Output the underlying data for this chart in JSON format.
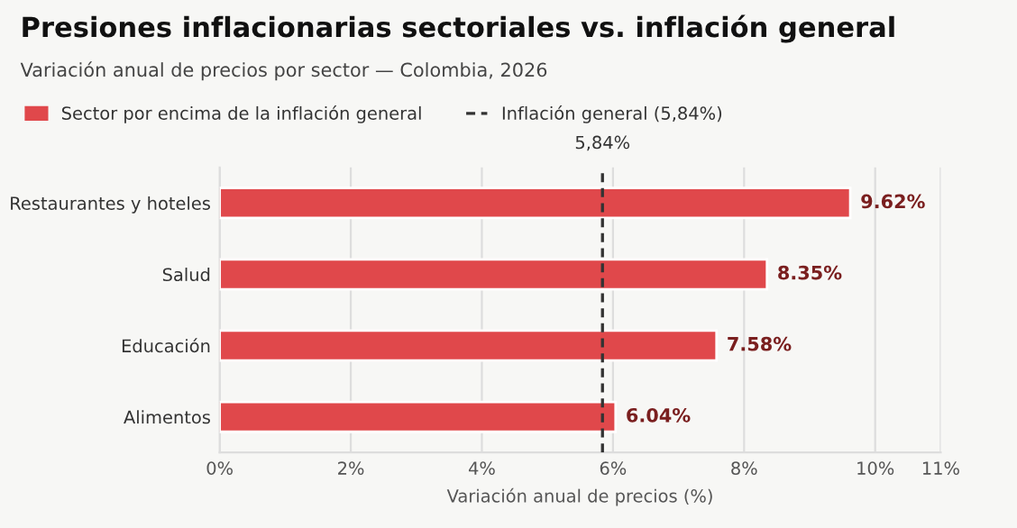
{
  "chart_data": {
    "type": "bar",
    "orientation": "horizontal",
    "title": "Presiones inflacionarias sectoriales vs. inflación general",
    "subtitle": "Variación anual de precios por sector — Colombia, 2026",
    "xlabel": "Variación anual de precios (%)",
    "categories": [
      "Restaurantes y hoteles",
      "Salud",
      "Educación",
      "Alimentos"
    ],
    "series": [
      {
        "name": "Sector por encima de la inflación general",
        "color": "#e0484b",
        "values": [
          9.62,
          8.35,
          7.58,
          6.04
        ],
        "value_labels": [
          "9.62%",
          "8.35%",
          "7.58%",
          "6.04%"
        ]
      }
    ],
    "xlim": [
      0,
      11
    ],
    "xticks": [
      {
        "value": 0,
        "label": "0%"
      },
      {
        "value": 2,
        "label": "2%"
      },
      {
        "value": 4,
        "label": "4%"
      },
      {
        "value": 6,
        "label": "6%"
      },
      {
        "value": 8,
        "label": "8%"
      },
      {
        "value": 10,
        "label": "10%"
      },
      {
        "value": 11,
        "label": "11%"
      }
    ],
    "ref_lines": [
      {
        "axis": "x",
        "value": 5.84,
        "label": "Inflación general (5,84%)",
        "color": "#333333",
        "line_style": "dashed"
      }
    ],
    "annotations": [
      "5,84%"
    ],
    "grid": "x",
    "legend": "top left"
  }
}
